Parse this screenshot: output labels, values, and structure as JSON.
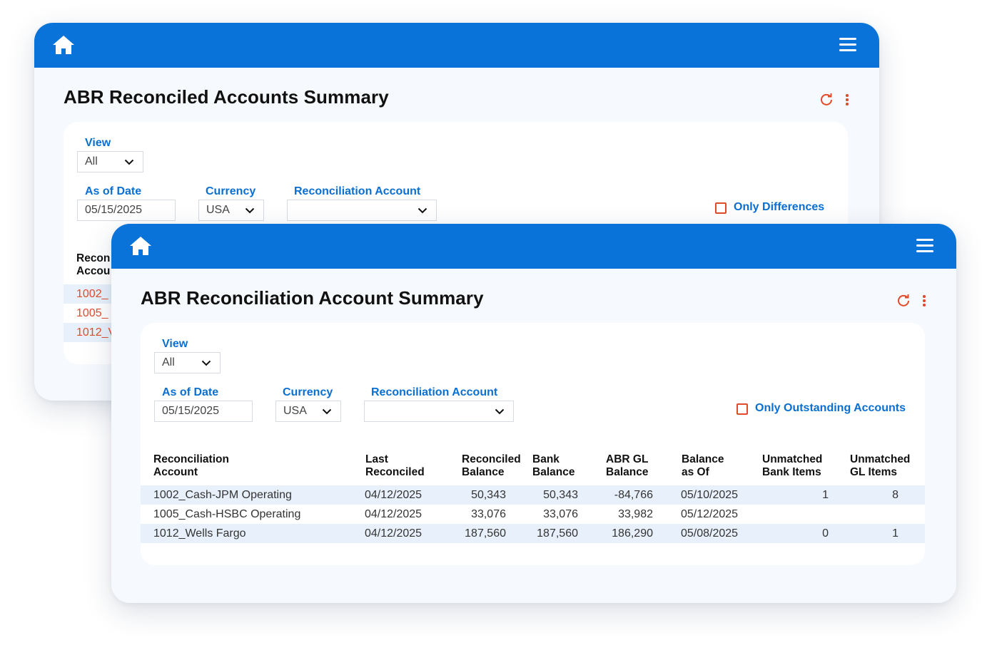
{
  "back_window": {
    "title": "ABR Reconciled Accounts Summary",
    "filters": {
      "view_label": "View",
      "view_value": "All",
      "as_of_date_label": "As of Date",
      "as_of_date_value": "05/15/2025",
      "currency_label": "Currency",
      "currency_value": "USA",
      "recon_account_label": "Reconciliation Account",
      "recon_account_value": "",
      "checkbox_label": "Only Differences"
    },
    "table_header_partial_line1": "Recon",
    "table_header_partial_line2": "Accou",
    "rows_partial": [
      "1002_",
      "1005_",
      "1012_V"
    ]
  },
  "front_window": {
    "title": "ABR Reconciliation Account Summary",
    "filters": {
      "view_label": "View",
      "view_value": "All",
      "as_of_date_label": "As of Date",
      "as_of_date_value": "05/15/2025",
      "currency_label": "Currency",
      "currency_value": "USA",
      "recon_account_label": "Reconciliation Account",
      "recon_account_value": "",
      "checkbox_label": "Only Outstanding Accounts"
    },
    "table": {
      "columns": [
        {
          "line1": "Reconciliation",
          "line2": "Account"
        },
        {
          "line1": "Last",
          "line2": "Reconciled"
        },
        {
          "line1": "Reconciled",
          "line2": "Balance"
        },
        {
          "line1": "Bank",
          "line2": "Balance"
        },
        {
          "line1": "ABR GL",
          "line2": "Balance"
        },
        {
          "line1": "Balance",
          "line2": "as Of"
        },
        {
          "line1": "Unmatched",
          "line2": "Bank Items"
        },
        {
          "line1": "Unmatched",
          "line2": "GL Items"
        }
      ],
      "rows": [
        {
          "account": "1002_Cash-JPM Operating",
          "last_reconciled": "04/12/2025",
          "reconciled_balance": "50,343",
          "bank_balance": "50,343",
          "abr_gl_balance": "-84,766",
          "balance_as_of": "05/10/2025",
          "unmatched_bank": "1",
          "unmatched_gl": "8"
        },
        {
          "account": "1005_Cash-HSBC Operating",
          "last_reconciled": "04/12/2025",
          "reconciled_balance": "33,076",
          "bank_balance": "33,076",
          "abr_gl_balance": "33,982",
          "balance_as_of": "05/12/2025",
          "unmatched_bank": "",
          "unmatched_gl": ""
        },
        {
          "account": "1012_Wells Fargo",
          "last_reconciled": "04/12/2025",
          "reconciled_balance": "187,560",
          "bank_balance": "187,560",
          "abr_gl_balance": "186,290",
          "balance_as_of": "05/08/2025",
          "unmatched_bank": "0",
          "unmatched_gl": "1"
        }
      ]
    }
  },
  "colors": {
    "header_blue": "#0a73d9",
    "link_blue": "#0a6fd1",
    "accent_red": "#e04b2a",
    "row_shade": "#e8f1fb"
  },
  "icons": [
    "home-icon",
    "menu-icon",
    "refresh-icon",
    "kebab-icon",
    "chevron-down-icon",
    "checkbox-icon"
  ]
}
